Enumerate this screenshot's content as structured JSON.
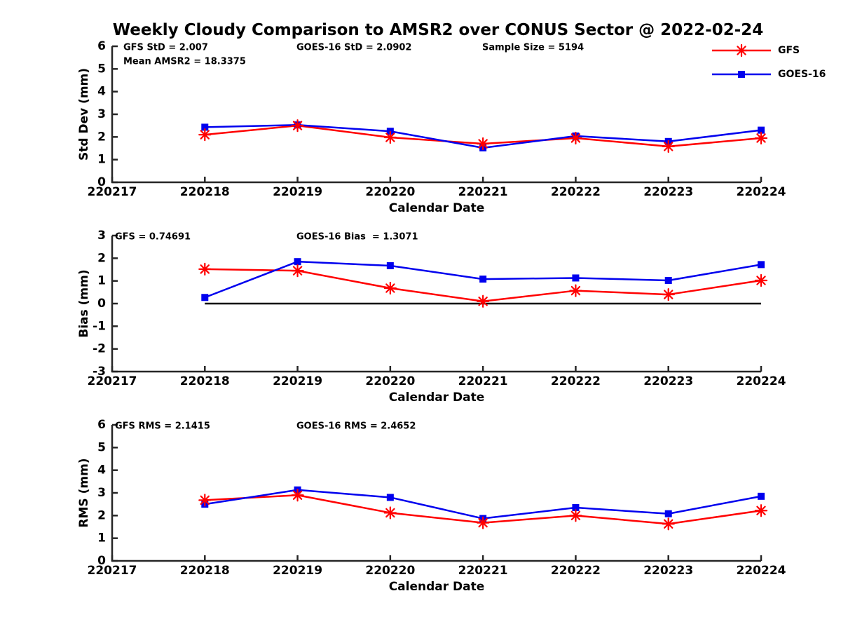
{
  "title": "Weekly Cloudy Comparison to AMSR2 over CONUS Sector @ 2022-02-24",
  "colors": {
    "gfs": "#ff0000",
    "goes16": "#0000ee",
    "axis": "#262626",
    "text": "#000000",
    "zero_line": "#000000"
  },
  "legend": {
    "items": [
      {
        "label": "GFS",
        "color": "#ff0000",
        "marker": "asterisk"
      },
      {
        "label": "GOES-16",
        "color": "#0000ee",
        "marker": "square"
      }
    ]
  },
  "chart_data": [
    {
      "type": "line",
      "ylabel": "Std Dev (mm)",
      "xlabel": "Calendar Date",
      "ylim": [
        0,
        6
      ],
      "yticks": [
        0,
        1,
        2,
        3,
        4,
        5,
        6
      ],
      "grid": false,
      "legend_position": "upper-right-outside",
      "categories": [
        "220217",
        "220218",
        "220219",
        "220220",
        "220221",
        "220222",
        "220223",
        "220224"
      ],
      "x_start_index": 1,
      "series": [
        {
          "name": "GFS",
          "color": "#ff0000",
          "marker": "asterisk",
          "values": [
            2.1,
            2.5,
            1.98,
            1.7,
            1.95,
            1.58,
            1.95
          ]
        },
        {
          "name": "GOES-16",
          "color": "#0000ee",
          "marker": "square",
          "values": [
            2.43,
            2.53,
            2.25,
            1.52,
            2.04,
            1.8,
            2.3
          ]
        }
      ],
      "annotations": [
        "GFS StD = 2.007",
        "Mean AMSR2 = 18.3375",
        "GOES-16 StD = 2.0902",
        "Sample Size = 5194"
      ],
      "zero_line": false
    },
    {
      "type": "line",
      "ylabel": "Bias (mm)",
      "xlabel": "Calendar Date",
      "ylim": [
        -3,
        3
      ],
      "yticks": [
        -3,
        -2,
        -1,
        0,
        1,
        2,
        3
      ],
      "grid": false,
      "categories": [
        "220217",
        "220218",
        "220219",
        "220220",
        "220221",
        "220222",
        "220223",
        "220224"
      ],
      "x_start_index": 1,
      "series": [
        {
          "name": "GFS",
          "color": "#ff0000",
          "marker": "asterisk",
          "values": [
            1.52,
            1.45,
            0.68,
            0.1,
            0.57,
            0.4,
            1.02
          ]
        },
        {
          "name": "GOES-16",
          "color": "#0000ee",
          "marker": "square",
          "values": [
            0.27,
            1.85,
            1.67,
            1.08,
            1.13,
            1.02,
            1.72
          ]
        }
      ],
      "annotations": [
        "GFS = 0.74691",
        "GOES-16 Bias  = 1.3071"
      ],
      "zero_line": true
    },
    {
      "type": "line",
      "ylabel": "RMS (mm)",
      "xlabel": "Calendar Date",
      "ylim": [
        0,
        6
      ],
      "yticks": [
        0,
        1,
        2,
        3,
        4,
        5,
        6
      ],
      "grid": false,
      "categories": [
        "220217",
        "220218",
        "220219",
        "220220",
        "220221",
        "220222",
        "220223",
        "220224"
      ],
      "x_start_index": 1,
      "series": [
        {
          "name": "GFS",
          "color": "#ff0000",
          "marker": "asterisk",
          "values": [
            2.68,
            2.9,
            2.12,
            1.68,
            2.0,
            1.63,
            2.22
          ]
        },
        {
          "name": "GOES-16",
          "color": "#0000ee",
          "marker": "square",
          "values": [
            2.5,
            3.13,
            2.8,
            1.87,
            2.35,
            2.08,
            2.85
          ]
        }
      ],
      "annotations": [
        "GFS RMS = 2.1415",
        "GOES-16 RMS = 2.4652"
      ],
      "zero_line": false
    }
  ]
}
